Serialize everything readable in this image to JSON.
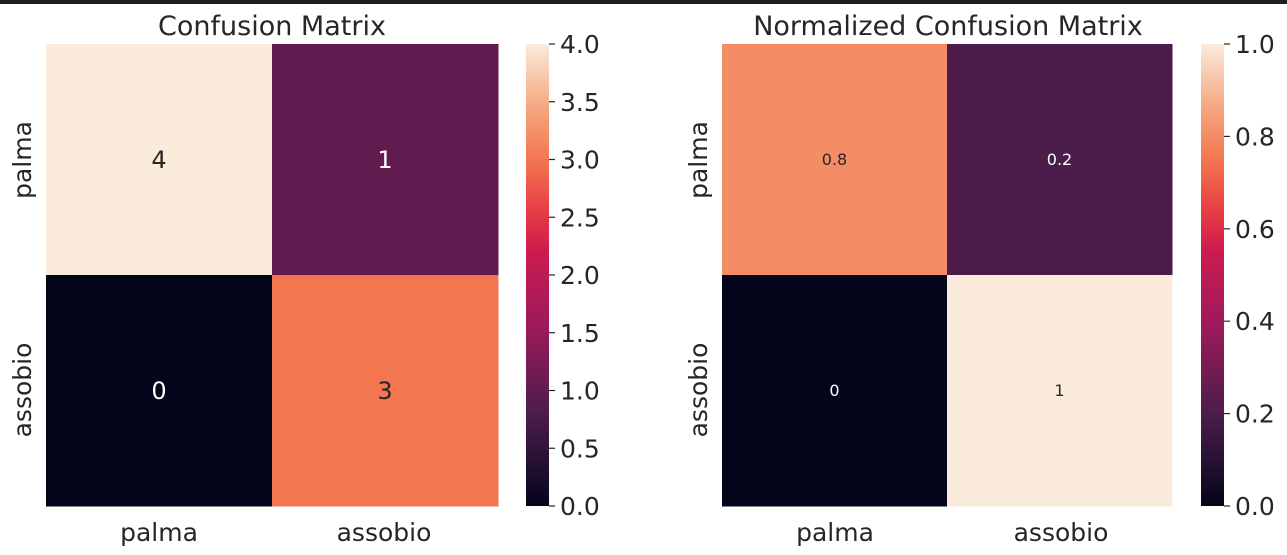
{
  "chart_data": [
    {
      "type": "heatmap",
      "title": "Confusion Matrix",
      "rows": [
        "palma",
        "assobio"
      ],
      "columns": [
        "palma",
        "assobio"
      ],
      "values": [
        [
          4,
          1
        ],
        [
          0,
          3
        ]
      ],
      "cell_labels": [
        [
          "4",
          "1"
        ],
        [
          "0",
          "3"
        ]
      ],
      "colorbar": {
        "min": 0.0,
        "max": 4.0,
        "ticks": [
          0.0,
          0.5,
          1.0,
          1.5,
          2.0,
          2.5,
          3.0,
          3.5,
          4.0
        ],
        "tick_labels": [
          "0.0",
          "0.5",
          "1.0",
          "1.5",
          "2.0",
          "2.5",
          "3.0",
          "3.5",
          "4.0"
        ]
      },
      "colormap": "rocket",
      "annotation_size": "large"
    },
    {
      "type": "heatmap",
      "title": "Normalized Confusion Matrix",
      "rows": [
        "palma",
        "assobio"
      ],
      "columns": [
        "palma",
        "assobio"
      ],
      "values": [
        [
          0.8,
          0.2
        ],
        [
          0,
          1
        ]
      ],
      "cell_labels": [
        [
          "0.8",
          "0.2"
        ],
        [
          "0",
          "1"
        ]
      ],
      "colorbar": {
        "min": 0.0,
        "max": 1.0,
        "ticks": [
          0.0,
          0.2,
          0.4,
          0.6,
          0.8,
          1.0
        ],
        "tick_labels": [
          "0.0",
          "0.2",
          "0.4",
          "0.6",
          "0.8",
          "1.0"
        ]
      },
      "colormap": "rocket",
      "annotation_size": "small"
    }
  ]
}
